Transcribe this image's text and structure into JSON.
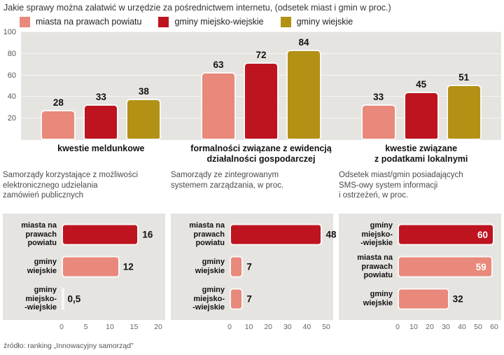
{
  "page": {
    "title": "Jakie sprawy można załatwić w urzędzie za pośrednictwem internetu, (odsetek miast i gmin w proc.)",
    "source": "źródło: ranking „Innowacyjny samorząd”"
  },
  "colors": {
    "salmon": "#e8897b",
    "crimson": "#bd1420",
    "gold": "#b29114",
    "panel_gray": "#e6e4e1"
  },
  "legend": [
    {
      "label": "miasta na prawach powiatu",
      "color": "#e8897b"
    },
    {
      "label": "gminy miejsko-wiejskie",
      "color": "#bd1420"
    },
    {
      "label": "gminy wiejskie",
      "color": "#b29114"
    }
  ],
  "chart_data": [
    {
      "type": "bar",
      "title": "Jakie sprawy można załatwić w urzędzie za pośrednictwem internetu, (odsetek miast i gmin w proc.)",
      "categories": [
        "kwestie meldunkowe",
        "formalności związane z ewidencją\ndziałalności gospodarczej",
        "kwestie związane\nz podatkami lokalnymi"
      ],
      "series": [
        {
          "name": "miasta na prawach powiatu",
          "color": "#e8897b",
          "values": [
            28,
            63,
            33
          ]
        },
        {
          "name": "gminy miejsko-wiejskie",
          "color": "#bd1420",
          "values": [
            33,
            72,
            45
          ]
        },
        {
          "name": "gminy wiejskie",
          "color": "#b29114",
          "values": [
            38,
            84,
            51
          ]
        }
      ],
      "ylim": [
        0,
        100
      ],
      "yticks": [
        20,
        40,
        60,
        80,
        100
      ],
      "grid": true,
      "legend_position": "top"
    },
    {
      "type": "bar-horizontal",
      "title": "Samorządy korzystające z możliwości\nelektronicznego udzielania\nzamówień publicznych",
      "rows": [
        {
          "label": "miasta na\nprawach\npowiatu",
          "value": 16,
          "display": "16",
          "color": "#bd1420",
          "value_inside": false
        },
        {
          "label": "gminy\nwiejskie",
          "value": 12,
          "display": "12",
          "color": "#e8897b",
          "value_inside": false
        },
        {
          "label": "gminy\nmiejsko-\n-wiejskie",
          "value": 0.5,
          "display": "0,5",
          "color": "#e8897b",
          "value_inside": false
        }
      ],
      "xlim": [
        0,
        20
      ],
      "xticks": [
        0,
        5,
        10,
        15,
        20
      ]
    },
    {
      "type": "bar-horizontal",
      "title": "Samorządy ze zintegrowanym\nsystemem zarządzania, w proc.",
      "rows": [
        {
          "label": "miasta na\nprawach\npowiatu",
          "value": 48,
          "display": "48",
          "color": "#bd1420",
          "value_inside": false
        },
        {
          "label": "gminy\nwiejskie",
          "value": 7,
          "display": "7",
          "color": "#e8897b",
          "value_inside": false
        },
        {
          "label": "gminy\nmiejsko-\n-wiejskie",
          "value": 7,
          "display": "7",
          "color": "#e8897b",
          "value_inside": false
        }
      ],
      "xlim": [
        0,
        50
      ],
      "xticks": [
        0,
        10,
        20,
        30,
        40,
        50
      ]
    },
    {
      "type": "bar-horizontal",
      "title": "Odsetek miast/gmin posiadających\nSMS-owy system informacji\ni ostrzeżeń, w proc.",
      "rows": [
        {
          "label": "gminy\nmiejsko-\n-wiejskie",
          "value": 60,
          "display": "60",
          "color": "#bd1420",
          "value_inside": true
        },
        {
          "label": "miasta na\nprawach\npowiatu",
          "value": 59,
          "display": "59",
          "color": "#e8897b",
          "value_inside": true
        },
        {
          "label": "gminy\nwiejskie",
          "value": 32,
          "display": "32",
          "color": "#e8897b",
          "value_inside": false
        }
      ],
      "xlim": [
        0,
        60
      ],
      "xticks": [
        0,
        10,
        20,
        30,
        40,
        50,
        60
      ]
    }
  ]
}
